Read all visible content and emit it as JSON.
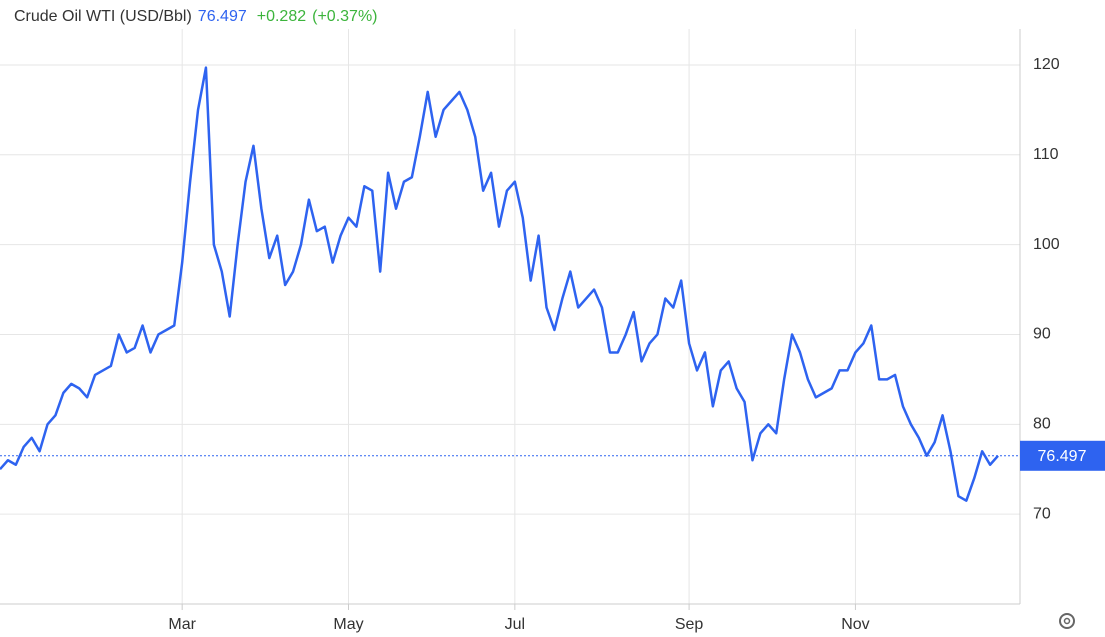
{
  "chart_data": {
    "type": "line",
    "title": "Crude Oil WTI (USD/Bbl)",
    "last_value": 76.497,
    "change": "+0.282",
    "change_percent": "(+0.37%)",
    "categories": [
      null,
      null,
      null,
      null,
      null,
      null,
      null,
      null,
      null,
      null,
      null,
      null,
      null,
      null,
      null,
      null,
      null,
      null,
      null,
      null,
      null,
      null,
      null,
      "Mar",
      null,
      null,
      null,
      null,
      null,
      null,
      null,
      null,
      null,
      null,
      null,
      null,
      null,
      null,
      null,
      null,
      null,
      null,
      null,
      null,
      "May",
      null,
      null,
      null,
      null,
      null,
      null,
      null,
      null,
      null,
      null,
      null,
      null,
      null,
      null,
      null,
      null,
      null,
      null,
      null,
      null,
      "Jul",
      null,
      null,
      null,
      null,
      null,
      null,
      null,
      null,
      null,
      null,
      null,
      null,
      null,
      null,
      null,
      null,
      null,
      null,
      null,
      null,
      null,
      "Sep",
      null,
      null,
      null,
      null,
      null,
      null,
      null,
      null,
      null,
      null,
      null,
      null,
      null,
      null,
      null,
      null,
      null,
      null,
      null,
      null,
      "Nov",
      null,
      null,
      null,
      null,
      null,
      null,
      null,
      null,
      null,
      null,
      null,
      null,
      null,
      null,
      null,
      null,
      null,
      null
    ],
    "series": [
      {
        "name": "Crude Oil WTI",
        "color": "#2e63f0",
        "values": [
          75,
          76,
          75.5,
          77.5,
          78.5,
          77,
          80,
          81,
          83.5,
          84.5,
          84,
          83,
          85.5,
          86,
          86.5,
          90,
          88,
          88.5,
          91,
          88,
          90,
          90.5,
          91,
          98,
          107,
          115,
          119.7,
          100,
          97,
          92,
          100,
          107,
          111,
          104,
          98.5,
          101,
          95.5,
          97,
          100,
          105,
          101.5,
          102,
          98,
          101,
          103,
          102,
          106.5,
          106,
          97,
          108,
          104,
          107,
          107.5,
          112,
          117,
          112,
          115,
          116,
          117,
          115,
          112,
          106,
          108,
          102,
          106,
          107,
          103,
          96,
          101,
          93,
          90.5,
          94,
          97,
          93,
          94,
          95,
          93,
          88,
          88,
          90,
          92.5,
          87,
          89,
          90,
          94,
          93,
          96,
          89,
          86,
          88,
          82,
          86,
          87,
          84,
          82.5,
          76,
          79,
          80,
          79,
          85,
          90,
          88,
          85,
          83,
          83.5,
          84,
          86,
          86,
          88,
          89,
          91,
          85,
          85,
          85.5,
          82,
          80,
          78.5,
          76.5,
          78,
          81,
          77,
          72,
          71.5,
          74,
          77,
          75.5,
          76.497
        ]
      }
    ],
    "ylim": [
      60,
      124
    ],
    "yticks": [
      70,
      80,
      90,
      100,
      110,
      120
    ],
    "grid": true
  }
}
